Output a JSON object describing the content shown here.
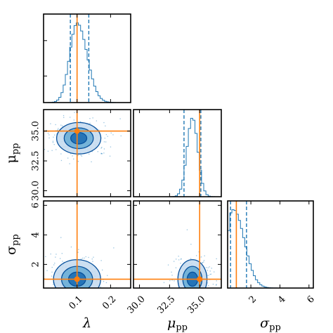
{
  "chart_data": {
    "type": "corner",
    "parameters": [
      {
        "key": "lambda",
        "label": "λ",
        "sub": "",
        "range": [
          0.0,
          0.26
        ],
        "ticks": [
          0.1,
          0.2
        ],
        "tick_labels": [
          "0.1",
          "0.2"
        ],
        "truth": 0.1,
        "quantiles": [
          0.08,
          0.135
        ]
      },
      {
        "key": "mu_pp",
        "label": "μ",
        "sub": "pp",
        "range": [
          29.5,
          36.8
        ],
        "ticks": [
          30.0,
          32.5,
          35.0
        ],
        "tick_labels": [
          "30.0",
          "32.5",
          "35.0"
        ],
        "truth": 35.0,
        "quantiles": [
          33.7,
          35.1
        ]
      },
      {
        "key": "sigma_pp",
        "label": "σ",
        "sub": "pp",
        "range": [
          0.4,
          6.3
        ],
        "ticks": [
          2,
          4,
          6
        ],
        "tick_labels": [
          "2",
          "4",
          "6"
        ],
        "truth": 1.0,
        "quantiles": [
          0.6,
          1.7
        ]
      }
    ],
    "marginals": [
      {
        "param": "lambda",
        "peak": 0.1,
        "sd": 0.022
      },
      {
        "param": "mu_pp",
        "peak": 34.4,
        "sd": 0.45
      },
      {
        "param": "sigma_pp",
        "peak": 0.8,
        "sd": 0.6
      }
    ],
    "joints": [
      {
        "x": "lambda",
        "y": "mu_pp",
        "center": [
          0.105,
          34.4
        ],
        "spread": [
          0.03,
          0.6
        ]
      },
      {
        "x": "lambda",
        "y": "sigma_pp",
        "center": [
          0.1,
          1.0
        ],
        "spread": [
          0.032,
          0.6
        ]
      },
      {
        "x": "mu_pp",
        "y": "sigma_pp",
        "center": [
          34.4,
          1.0
        ],
        "spread": [
          0.55,
          0.6
        ]
      }
    ],
    "colors": {
      "histogram": "#1f77b4",
      "quantile_line": "#1f77b4",
      "truth": "#ff7f0e",
      "contour_light": "#c6dbef",
      "contour_mid": "#6baed6",
      "contour_dark": "#2171b5",
      "contour_line": "#08519c",
      "scatter": "#4292c6"
    }
  }
}
